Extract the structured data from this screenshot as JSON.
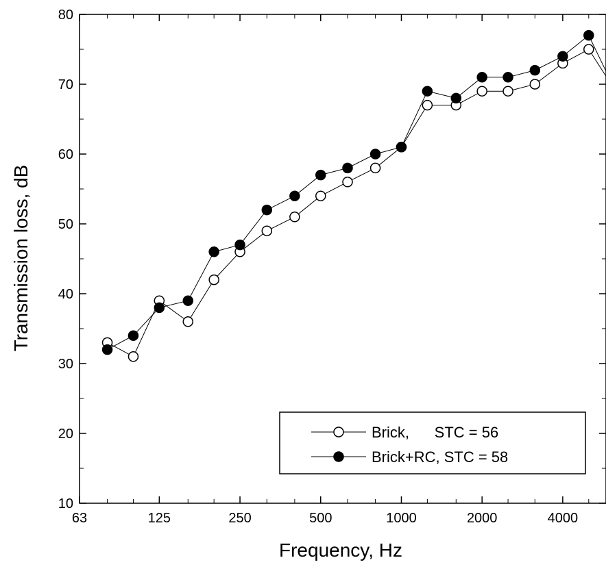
{
  "chart_data": {
    "type": "line",
    "xlabel": "Frequency, Hz",
    "ylabel": "Transmission loss, dB",
    "x_scale": "log2",
    "x_unit": "Hz",
    "xlim": [
      63,
      5800
    ],
    "ylim": [
      10,
      80
    ],
    "x_ticks": [
      63,
      125,
      250,
      500,
      1000,
      2000,
      4000
    ],
    "x_tick_labels": [
      "63",
      "125",
      "250",
      "500",
      "1000",
      "2000",
      "4000"
    ],
    "y_ticks": [
      10,
      20,
      30,
      40,
      50,
      60,
      70,
      80
    ],
    "y_tick_labels": [
      "10",
      "20",
      "30",
      "40",
      "50",
      "60",
      "70",
      "80"
    ],
    "grid": false,
    "legend_position": "bottom-right",
    "x": [
      80,
      100,
      125,
      160,
      200,
      250,
      315,
      400,
      500,
      630,
      800,
      1000,
      1250,
      1600,
      2000,
      2500,
      3150,
      4000,
      5000,
      6300
    ],
    "series": [
      {
        "name": "Brick,",
        "legend_label": "Brick,      STC = 56",
        "marker": "open-circle",
        "color": "#000000",
        "values": [
          33,
          31,
          39,
          36,
          42,
          46,
          49,
          51,
          54,
          56,
          58,
          61,
          67,
          67,
          69,
          69,
          70,
          73,
          75,
          69
        ]
      },
      {
        "name": "Brick+RC,",
        "legend_label": "Brick+RC, STC = 58",
        "marker": "filled-circle",
        "color": "#000000",
        "values": [
          32,
          34,
          38,
          39,
          46,
          47,
          52,
          54,
          57,
          58,
          60,
          61,
          69,
          68,
          71,
          71,
          72,
          74,
          77,
          69
        ]
      }
    ]
  }
}
